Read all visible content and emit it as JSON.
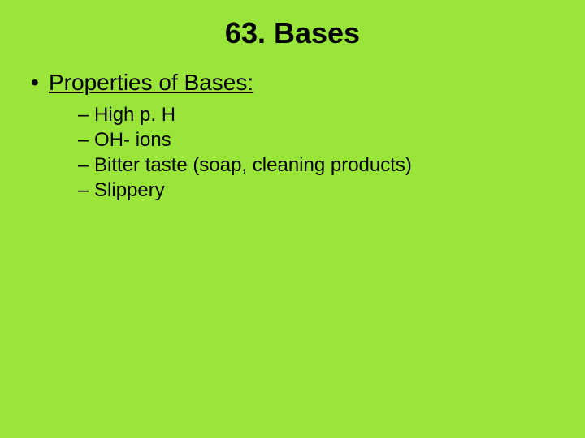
{
  "slide": {
    "background_color": "#99e53a",
    "text_color": "#000000",
    "title": {
      "text": "63. Bases",
      "fontsize": 36,
      "fontweight": "bold"
    },
    "bullet": {
      "marker": "•",
      "label": "Properties of Bases:",
      "fontsize": 28,
      "underline": true
    },
    "sub_bullets": {
      "marker": "–",
      "fontsize": 24,
      "items": [
        "High p. H",
        "OH- ions",
        "Bitter taste (soap, cleaning products)",
        "Slippery"
      ]
    }
  }
}
